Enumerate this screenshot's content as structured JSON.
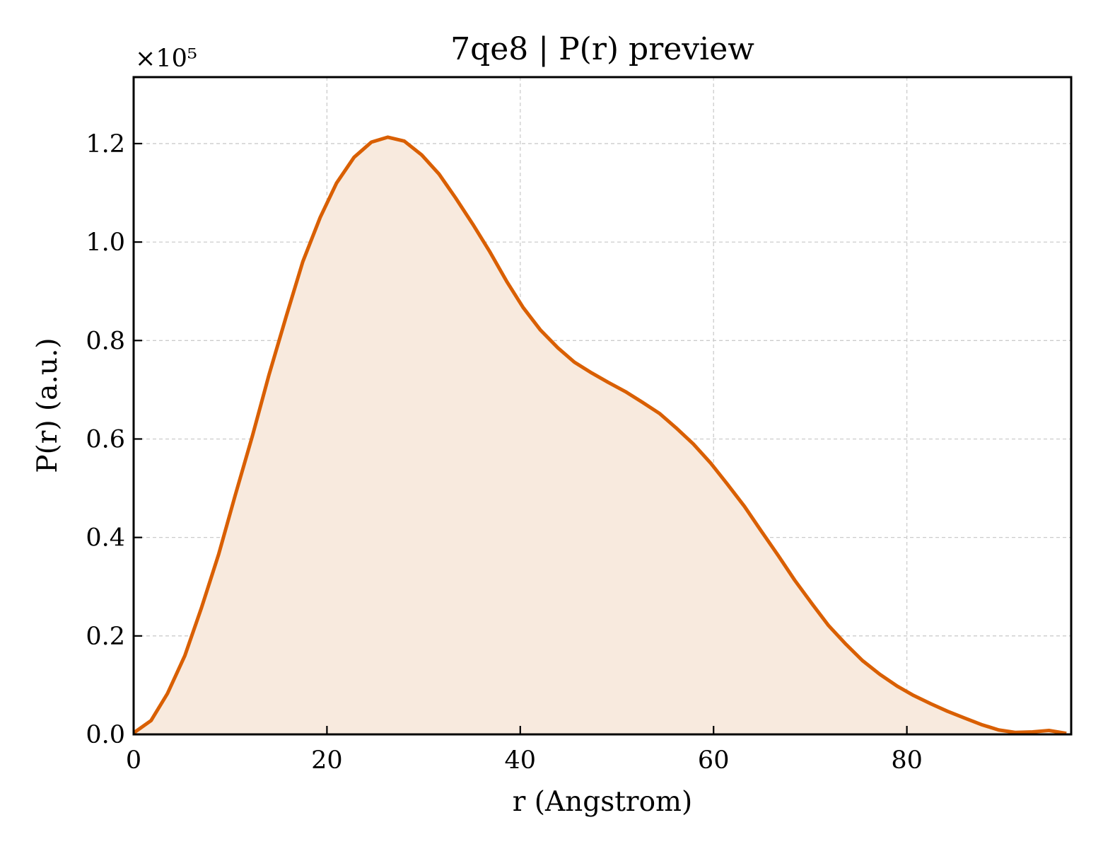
{
  "chart_data": {
    "type": "area",
    "title": "7qe8 | P(r) preview",
    "xlabel": "r (Angstrom)",
    "ylabel": "P(r) (a.u.)",
    "y_scale_multiplier": "×10⁵",
    "xlim": [
      0,
      97
    ],
    "ylim": [
      0,
      1.335
    ],
    "x_ticks": [
      0,
      20,
      40,
      60,
      80
    ],
    "x_tick_labels": [
      "0",
      "20",
      "40",
      "60",
      "80"
    ],
    "y_ticks": [
      0,
      0.2,
      0.4,
      0.6,
      0.8,
      1.0,
      1.2
    ],
    "y_tick_labels": [
      "0.0",
      "0.2",
      "0.4",
      "0.6",
      "0.8",
      "1.0",
      "1.2"
    ],
    "grid": true,
    "line_color": "#d95f02",
    "fill_color": "#f8eade",
    "series": [
      {
        "x": [
          0,
          1.8,
          3.5,
          5.3,
          7.0,
          8.8,
          10.5,
          12.3,
          14.0,
          15.8,
          17.5,
          19.3,
          21.0,
          22.8,
          24.6,
          26.3,
          28.0,
          29.8,
          31.6,
          33.3,
          35.1,
          36.8,
          38.6,
          40.3,
          42.1,
          43.9,
          45.6,
          47.4,
          49.1,
          50.9,
          52.6,
          54.4,
          56.1,
          57.9,
          59.7,
          61.4,
          63.2,
          64.9,
          66.7,
          68.4,
          70.2,
          71.9,
          73.7,
          75.4,
          77.2,
          79.0,
          80.7,
          82.5,
          84.2,
          86.0,
          87.7,
          89.5,
          91.2,
          93.0,
          94.7,
          96.5
        ],
        "values": [
          0.003,
          0.028,
          0.083,
          0.16,
          0.256,
          0.366,
          0.485,
          0.607,
          0.73,
          0.85,
          0.96,
          1.05,
          1.12,
          1.172,
          1.203,
          1.213,
          1.205,
          1.177,
          1.138,
          1.09,
          1.036,
          0.982,
          0.92,
          0.867,
          0.821,
          0.785,
          0.756,
          0.734,
          0.715,
          0.696,
          0.675,
          0.652,
          0.623,
          0.59,
          0.551,
          0.509,
          0.463,
          0.414,
          0.363,
          0.313,
          0.265,
          0.221,
          0.183,
          0.15,
          0.122,
          0.098,
          0.079,
          0.062,
          0.047,
          0.033,
          0.02,
          0.009,
          0.004,
          0.005,
          0.008,
          0.002
        ]
      }
    ]
  }
}
